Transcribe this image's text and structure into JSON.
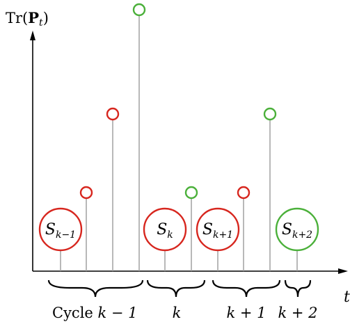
{
  "y_axis_label": {
    "pre": "Tr(",
    "bold": "P",
    "sub": "t",
    "post": ")"
  },
  "x_axis_label": "t",
  "colors": {
    "red": "#d7261e",
    "green": "#4bb03a",
    "stem": "#9a9a9a",
    "axis": "#000000"
  },
  "sets": [
    {
      "name": "S",
      "sub": "k−1",
      "color": "red"
    },
    {
      "name": "S",
      "sub": "k",
      "color": "red"
    },
    {
      "name": "S",
      "sub": "k+1",
      "color": "red"
    },
    {
      "name": "S",
      "sub": "k+2",
      "color": "green"
    }
  ],
  "stems": [
    {
      "id": "s1",
      "marker": "none"
    },
    {
      "id": "s2",
      "marker": "red"
    },
    {
      "id": "s3",
      "marker": "red"
    },
    {
      "id": "s4",
      "marker": "green"
    },
    {
      "id": "s5",
      "marker": "none"
    },
    {
      "id": "s6",
      "marker": "green"
    },
    {
      "id": "s7",
      "marker": "none"
    },
    {
      "id": "s8",
      "marker": "red"
    },
    {
      "id": "s9",
      "marker": "green"
    },
    {
      "id": "s10",
      "marker": "none"
    }
  ],
  "cycles": [
    {
      "prefix": "Cycle ",
      "math": "k − 1"
    },
    {
      "prefix": "",
      "math": "k"
    },
    {
      "prefix": "",
      "math": "k + 1"
    },
    {
      "prefix": "",
      "math": "k + 2"
    }
  ]
}
